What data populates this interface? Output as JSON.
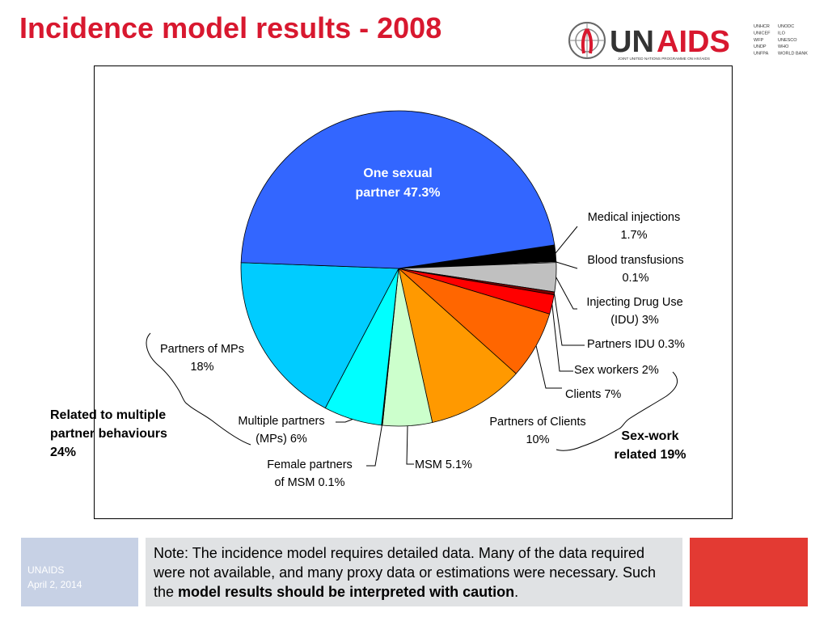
{
  "title": "Incidence model results - 2008",
  "logo": {
    "name": "UNAIDS",
    "tagline": "JOINT UNITED NATIONS PROGRAMME ON HIV/AIDS",
    "cosponsors_col1": [
      "UNHCR",
      "UNICEF",
      "WFP",
      "UNDP",
      "UNFPA"
    ],
    "cosponsors_col2": [
      "UNODC",
      "ILO",
      "UNESCO",
      "WHO",
      "WORLD BANK"
    ]
  },
  "chart_data": {
    "type": "pie",
    "title": "",
    "slices": [
      {
        "label": "Medical injections",
        "value": 1.7,
        "color": "#000000",
        "display": "Medical injections 1.7%"
      },
      {
        "label": "Blood transfusions",
        "value": 0.1,
        "color": "#ffffff",
        "display": "Blood transfusions 0.1%"
      },
      {
        "label": "Injecting Drug Use (IDU)",
        "value": 3.0,
        "color": "#c0c0c0",
        "display": "Injecting Drug Use (IDU) 3%"
      },
      {
        "label": "Partners IDU",
        "value": 0.3,
        "color": "#800000",
        "display": "Partners IDU 0.3%"
      },
      {
        "label": "Sex workers",
        "value": 2.0,
        "color": "#ff0000",
        "display": "Sex workers 2%"
      },
      {
        "label": "Clients",
        "value": 7.0,
        "color": "#ff6600",
        "display": "Clients 7%"
      },
      {
        "label": "Partners of Clients",
        "value": 10.0,
        "color": "#ff9900",
        "display": "Partners of Clients 10%"
      },
      {
        "label": "MSM",
        "value": 5.1,
        "color": "#ccffcc",
        "display": "MSM 5.1%"
      },
      {
        "label": "Female partners of MSM",
        "value": 0.1,
        "color": "#003300",
        "display": "Female partners of MSM 0.1%"
      },
      {
        "label": "Multiple partners (MPs)",
        "value": 6.0,
        "color": "#00ffff",
        "display": "Multiple partners (MPs) 6%"
      },
      {
        "label": "Partners of MPs",
        "value": 18.0,
        "color": "#00ccff",
        "display": "Partners of MPs 18%"
      },
      {
        "label": "One sexual partner",
        "value": 47.3,
        "color": "#3366ff",
        "display": "One sexual partner 47.3%"
      }
    ],
    "groups": [
      {
        "label": "Related to multiple partner behaviours 24%"
      },
      {
        "label": "Sex-work related 19%"
      }
    ]
  },
  "labels": {
    "one_sexual_1": "One sexual",
    "one_sexual_2": "partner 47.3%",
    "medical_1": "Medical injections",
    "medical_2": "1.7%",
    "blood_1": "Blood transfusions",
    "blood_2": "0.1%",
    "idu_1": "Injecting Drug Use",
    "idu_2": "(IDU) 3%",
    "partners_idu": "Partners IDU 0.3%",
    "sex_workers": "Sex workers 2%",
    "clients": "Clients 7%",
    "partners_clients_1": "Partners of Clients",
    "partners_clients_2": "10%",
    "msm": "MSM 5.1%",
    "female_msm_1": "Female partners",
    "female_msm_2": "of MSM 0.1%",
    "mp_1": "Multiple partners",
    "mp_2": "(MPs) 6%",
    "pmp_1": "Partners of MPs",
    "pmp_2": "18%",
    "group_multi_1": "Related to multiple",
    "group_multi_2": "partner behaviours",
    "group_multi_3": "24%",
    "group_sex_1": "Sex-work",
    "group_sex_2": "related 19%"
  },
  "footer": {
    "org": "UNAIDS",
    "date": "April 2, 2014",
    "note_prefix": "Note: The incidence model requires detailed data. Many of the data required were not available, and many proxy data or estimations were necessary. Such the ",
    "note_bold": "model results should be interpreted with caution",
    "note_suffix": "."
  },
  "colors": {
    "title": "#d8182f",
    "footer_left": "#c7d1e5",
    "note_bg": "#e0e2e4",
    "footer_right": "#e33a33"
  }
}
